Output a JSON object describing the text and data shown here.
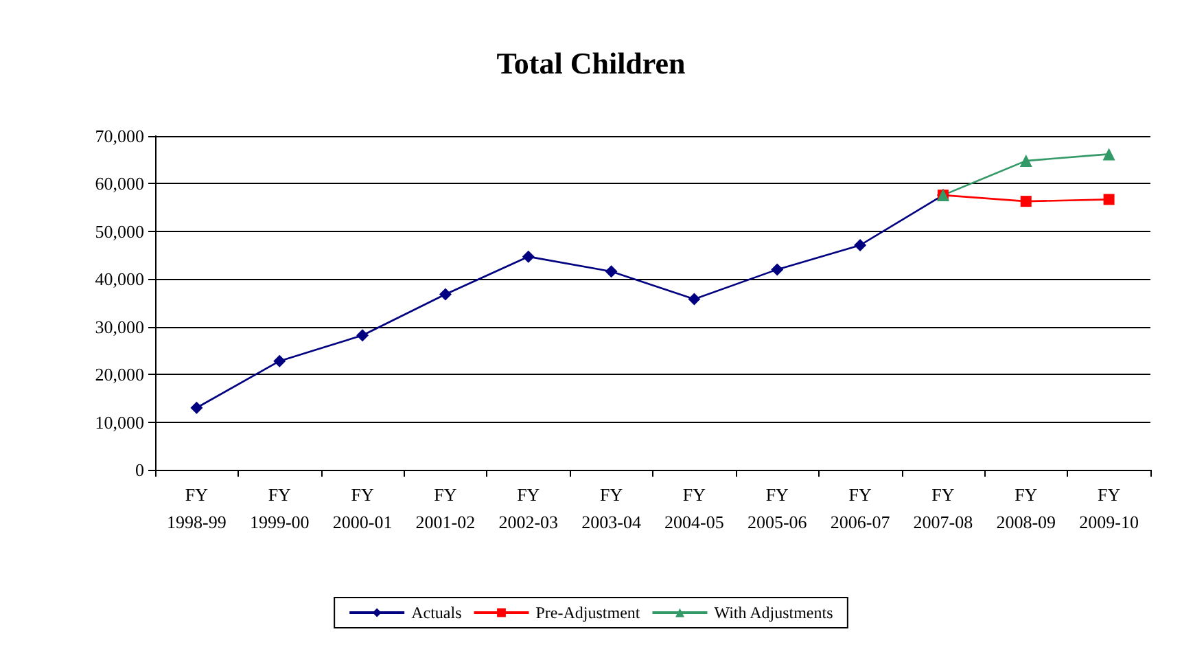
{
  "chart_data": {
    "type": "line",
    "title": "Total Children",
    "categories": [
      "FY 1998-99",
      "FY 1999-00",
      "FY 2000-01",
      "FY 2001-02",
      "FY 2002-03",
      "FY 2003-04",
      "FY 2004-05",
      "FY 2005-06",
      "FY 2006-07",
      "FY 2007-08",
      "FY 2008-09",
      "FY 2009-10"
    ],
    "series": [
      {
        "name": "Actuals",
        "color": "#000080",
        "marker": "diamond",
        "values": [
          13000,
          22800,
          28200,
          36800,
          44700,
          41600,
          35800,
          42000,
          47100,
          57600,
          null,
          null
        ]
      },
      {
        "name": "Pre-Adjustment",
        "color": "#ff0000",
        "marker": "square",
        "values": [
          null,
          null,
          null,
          null,
          null,
          null,
          null,
          null,
          null,
          57600,
          56300,
          56700
        ]
      },
      {
        "name": "With Adjustments",
        "color": "#339966",
        "marker": "triangle",
        "values": [
          null,
          null,
          null,
          null,
          null,
          null,
          null,
          null,
          null,
          57600,
          64800,
          66200
        ]
      }
    ],
    "ylim": [
      0,
      70000
    ],
    "yticks": [
      0,
      {
        "value": 10000,
        "label": "10,000"
      },
      {
        "value": 20000,
        "label": "20,000"
      },
      {
        "value": 30000,
        "label": "30,000"
      },
      {
        "value": 40000,
        "label": "40,000"
      },
      {
        "value": 50000,
        "label": "50,000"
      },
      {
        "value": 60000,
        "label": "60,000"
      },
      {
        "value": 70000,
        "label": "70,000"
      }
    ],
    "grid": "y",
    "legend": "bottom",
    "line_style": "solid"
  }
}
